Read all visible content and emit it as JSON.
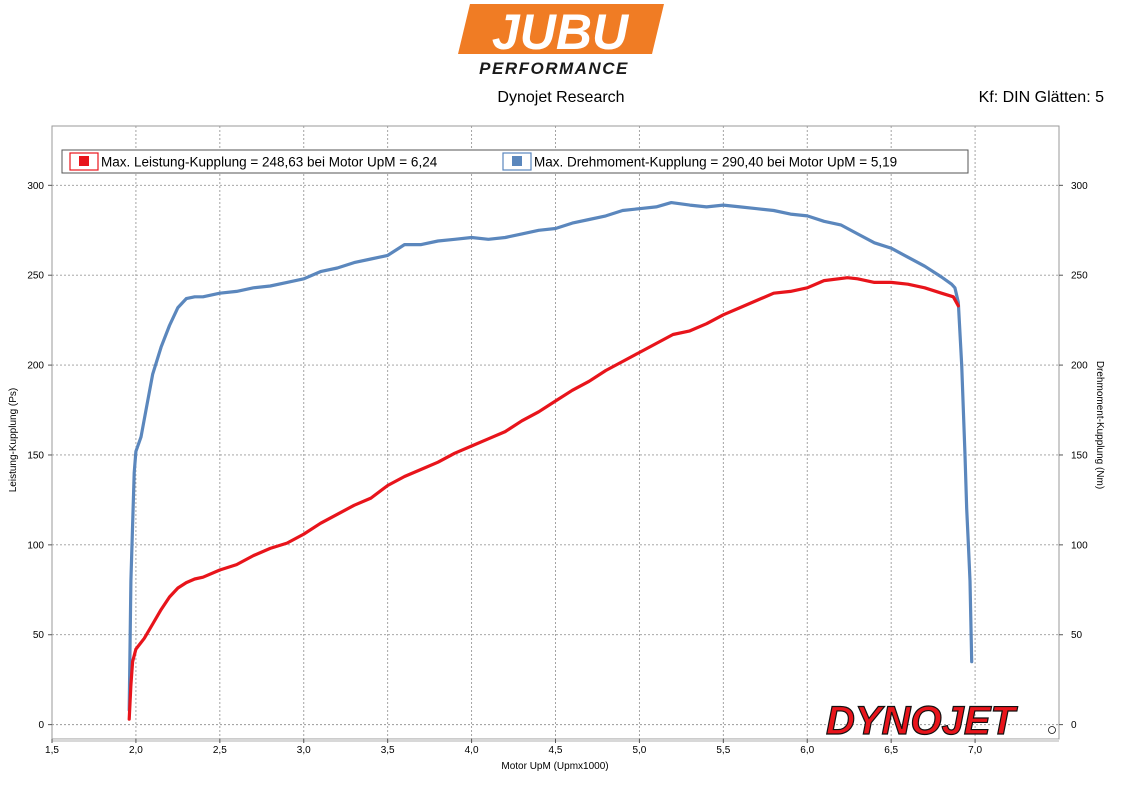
{
  "header": {
    "logo_main": "JUBU",
    "logo_sub": "PERFORMANCE",
    "subtitle": "Dynojet Research",
    "settings": "Kf: DIN Glätten: 5",
    "watermark": "DYNOJET"
  },
  "colors": {
    "power": "#e8141b",
    "torque": "#5b87bd",
    "logo_orange": "#f07c24",
    "watermark": "#e8141b"
  },
  "chart_data": {
    "type": "line",
    "xlabel": "Motor UpM (Upmx1000)",
    "ylabel_left": "Leistung-Kupplung (Ps)",
    "ylabel_right": "Drehmoment-Kupplung (Nm)",
    "xlim": [
      1.5,
      7.5
    ],
    "ylim": [
      -8,
      333
    ],
    "x_ticks": [
      1.5,
      2.0,
      2.5,
      3.0,
      3.5,
      4.0,
      4.5,
      5.0,
      5.5,
      6.0,
      6.5,
      7.0
    ],
    "x_tick_labels": [
      "1,5",
      "2,0",
      "2,5",
      "3,0",
      "3,5",
      "4,0",
      "4,5",
      "5,0",
      "5,5",
      "6,0",
      "6,5",
      "7,0"
    ],
    "y_ticks": [
      0,
      50,
      100,
      150,
      200,
      250,
      300
    ],
    "y_tick_labels": [
      "0",
      "50",
      "100",
      "150",
      "200",
      "250",
      "300"
    ],
    "grid": true,
    "legend_placement": "top-left",
    "series": [
      {
        "name": "Max. Leistung-Kupplung = 248,63 bei Motor UpM = 6,24",
        "axis": "left",
        "points": [
          [
            1.96,
            3
          ],
          [
            1.97,
            22
          ],
          [
            1.98,
            35
          ],
          [
            2.0,
            42
          ],
          [
            2.05,
            48
          ],
          [
            2.1,
            56
          ],
          [
            2.15,
            64
          ],
          [
            2.2,
            71
          ],
          [
            2.25,
            76
          ],
          [
            2.3,
            79
          ],
          [
            2.35,
            81
          ],
          [
            2.4,
            82
          ],
          [
            2.5,
            86
          ],
          [
            2.6,
            89
          ],
          [
            2.7,
            94
          ],
          [
            2.8,
            98
          ],
          [
            2.9,
            101
          ],
          [
            3.0,
            106
          ],
          [
            3.1,
            112
          ],
          [
            3.2,
            117
          ],
          [
            3.3,
            122
          ],
          [
            3.4,
            126
          ],
          [
            3.5,
            133
          ],
          [
            3.6,
            138
          ],
          [
            3.7,
            142
          ],
          [
            3.8,
            146
          ],
          [
            3.9,
            151
          ],
          [
            4.0,
            155
          ],
          [
            4.1,
            159
          ],
          [
            4.2,
            163
          ],
          [
            4.3,
            169
          ],
          [
            4.4,
            174
          ],
          [
            4.5,
            180
          ],
          [
            4.6,
            186
          ],
          [
            4.7,
            191
          ],
          [
            4.8,
            197
          ],
          [
            4.9,
            202
          ],
          [
            5.0,
            207
          ],
          [
            5.1,
            212
          ],
          [
            5.2,
            217
          ],
          [
            5.3,
            219
          ],
          [
            5.4,
            223
          ],
          [
            5.5,
            228
          ],
          [
            5.6,
            232
          ],
          [
            5.7,
            236
          ],
          [
            5.8,
            240
          ],
          [
            5.9,
            241
          ],
          [
            6.0,
            243
          ],
          [
            6.1,
            247
          ],
          [
            6.24,
            248.6
          ],
          [
            6.3,
            248
          ],
          [
            6.4,
            246
          ],
          [
            6.5,
            246
          ],
          [
            6.6,
            245
          ],
          [
            6.7,
            243
          ],
          [
            6.8,
            240
          ],
          [
            6.87,
            238
          ],
          [
            6.9,
            233
          ]
        ]
      },
      {
        "name": "Max. Drehmoment-Kupplung = 290,40 bei Motor UpM = 5,19",
        "axis": "right",
        "points": [
          [
            1.96,
            8
          ],
          [
            1.97,
            80
          ],
          [
            1.99,
            140
          ],
          [
            2.0,
            152
          ],
          [
            2.03,
            160
          ],
          [
            2.06,
            175
          ],
          [
            2.1,
            195
          ],
          [
            2.15,
            210
          ],
          [
            2.2,
            222
          ],
          [
            2.25,
            232
          ],
          [
            2.3,
            237
          ],
          [
            2.35,
            238
          ],
          [
            2.4,
            238
          ],
          [
            2.5,
            240
          ],
          [
            2.6,
            241
          ],
          [
            2.7,
            243
          ],
          [
            2.8,
            244
          ],
          [
            2.9,
            246
          ],
          [
            3.0,
            248
          ],
          [
            3.1,
            252
          ],
          [
            3.2,
            254
          ],
          [
            3.3,
            257
          ],
          [
            3.4,
            259
          ],
          [
            3.5,
            261
          ],
          [
            3.6,
            267
          ],
          [
            3.7,
            267
          ],
          [
            3.8,
            269
          ],
          [
            3.9,
            270
          ],
          [
            4.0,
            271
          ],
          [
            4.1,
            270
          ],
          [
            4.2,
            271
          ],
          [
            4.3,
            273
          ],
          [
            4.4,
            275
          ],
          [
            4.5,
            276
          ],
          [
            4.6,
            279
          ],
          [
            4.7,
            281
          ],
          [
            4.8,
            283
          ],
          [
            4.9,
            286
          ],
          [
            5.0,
            287
          ],
          [
            5.1,
            288
          ],
          [
            5.19,
            290.4
          ],
          [
            5.3,
            289
          ],
          [
            5.4,
            288
          ],
          [
            5.5,
            289
          ],
          [
            5.6,
            288
          ],
          [
            5.7,
            287
          ],
          [
            5.8,
            286
          ],
          [
            5.9,
            284
          ],
          [
            6.0,
            283
          ],
          [
            6.1,
            280
          ],
          [
            6.2,
            278
          ],
          [
            6.3,
            273
          ],
          [
            6.4,
            268
          ],
          [
            6.5,
            265
          ],
          [
            6.6,
            260
          ],
          [
            6.7,
            255
          ],
          [
            6.8,
            249
          ],
          [
            6.86,
            245
          ],
          [
            6.88,
            243
          ],
          [
            6.9,
            235
          ],
          [
            6.92,
            200
          ],
          [
            6.94,
            150
          ],
          [
            6.95,
            120
          ],
          [
            6.96,
            100
          ],
          [
            6.97,
            80
          ],
          [
            6.98,
            35
          ]
        ]
      }
    ]
  }
}
